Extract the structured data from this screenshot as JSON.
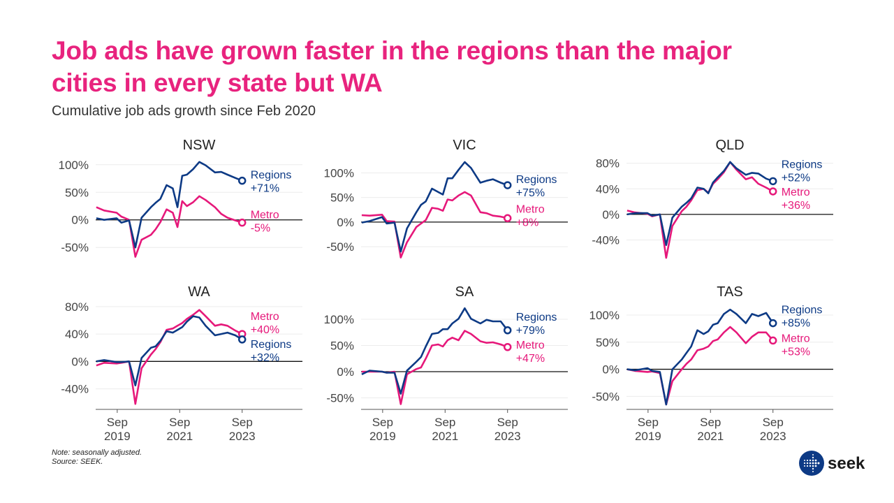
{
  "title_lines": [
    "Job ads have grown faster in the regions than the major",
    "cities in every state but WA"
  ],
  "subtitle": "Cumulative job ads growth since Feb 2020",
  "note": "Note: seasonally adjusted.",
  "source": "Source: SEEK.",
  "logo_text": "seek",
  "colors": {
    "regions": "#0d3a85",
    "metro": "#e6187a",
    "title": "#e8237e"
  },
  "chart_data": {
    "type": "line",
    "xlabel": "",
    "ylabel": "",
    "xlim": [
      2018.98,
      2025.6
    ],
    "x_ticks": [
      {
        "value": 2019.67,
        "month": "Sep",
        "year": "2019"
      },
      {
        "value": 2021.67,
        "month": "Sep",
        "year": "2021"
      },
      {
        "value": 2023.67,
        "month": "Sep",
        "year": "2023"
      }
    ],
    "x": [
      2019.0,
      2019.25,
      2019.65,
      2019.8,
      2020.05,
      2020.25,
      2020.45,
      2020.75,
      2020.9,
      2021.05,
      2021.25,
      2021.45,
      2021.6,
      2021.75,
      2021.9,
      2022.1,
      2022.3,
      2022.5,
      2022.8,
      2023.0,
      2023.2,
      2023.45,
      2023.67
    ],
    "panels": [
      {
        "title": "NSW",
        "ylim": [
          -70,
          120
        ],
        "yticks": [
          -50,
          0,
          50,
          100
        ],
        "ytick_labels": [
          "-50%",
          "0%",
          "50%",
          "100%"
        ],
        "series": [
          {
            "name": "Regions",
            "end_label": "+71%",
            "values": [
              3,
              0,
              3,
              -5,
              -1,
              -50,
              4,
              23,
              31,
              38,
              63,
              57,
              23,
              80,
              82,
              92,
              105,
              99,
              86,
              87,
              82,
              76,
              71
            ]
          },
          {
            "name": "Metro",
            "end_label": "-5%",
            "values": [
              23,
              17,
              13,
              6,
              0,
              -67,
              -36,
              -27,
              -17,
              -4,
              19,
              13,
              -13,
              34,
              25,
              32,
              43,
              36,
              23,
              11,
              4,
              -1,
              -5
            ]
          }
        ]
      },
      {
        "title": "VIC",
        "ylim": [
          -74,
          139
        ],
        "yticks": [
          -50,
          0,
          50,
          100
        ],
        "ytick_labels": [
          "-50%",
          "0%",
          "50%",
          "100%"
        ],
        "series": [
          {
            "name": "Regions",
            "end_label": "+75%",
            "values": [
              -1,
              2,
              10,
              -3,
              -1,
              -60,
              -13,
              20,
              35,
              42,
              68,
              61,
              56,
              89,
              89,
              106,
              122,
              110,
              80,
              84,
              87,
              80,
              75
            ]
          },
          {
            "name": "Metro",
            "end_label": "+8%",
            "values": [
              14,
              13,
              15,
              2,
              1,
              -72,
              -41,
              -10,
              -3,
              4,
              29,
              27,
              23,
              46,
              44,
              54,
              61,
              54,
              20,
              18,
              13,
              11,
              8
            ]
          }
        ]
      },
      {
        "title": "QLD",
        "ylim": [
          -69,
          95
        ],
        "yticks": [
          -40,
          0,
          40,
          80
        ],
        "ytick_labels": [
          "-40%",
          "0%",
          "40%",
          "80%"
        ],
        "series": [
          {
            "name": "Regions",
            "end_label": "+52%",
            "values": [
              0,
              2,
              2,
              -2,
              0,
              -48,
              -5,
              12,
              18,
              25,
              42,
              40,
              33,
              50,
              58,
              68,
              82,
              72,
              62,
              65,
              64,
              56,
              52
            ]
          },
          {
            "name": "Metro",
            "end_label": "+36%",
            "values": [
              6,
              3,
              1,
              -3,
              0,
              -68,
              -18,
              5,
              12,
              22,
              38,
              40,
              34,
              48,
              55,
              66,
              82,
              70,
              55,
              58,
              48,
              42,
              36
            ]
          }
        ]
      },
      {
        "title": "WA",
        "ylim": [
          -70,
          89
        ],
        "yticks": [
          -40,
          0,
          40,
          80
        ],
        "ytick_labels": [
          "-40%",
          "0%",
          "40%",
          "80%"
        ],
        "series": [
          {
            "name": "Regions",
            "end_label": "+32%",
            "values": [
              0,
              2,
              -1,
              -1,
              0,
              -35,
              5,
              20,
              22,
              30,
              44,
              42,
              46,
              50,
              58,
              66,
              64,
              52,
              38,
              40,
              42,
              38,
              32
            ]
          },
          {
            "name": "Metro",
            "end_label": "+40%",
            "values": [
              -6,
              -2,
              -3,
              -2,
              0,
              -62,
              -10,
              10,
              18,
              28,
              46,
              48,
              52,
              56,
              62,
              68,
              75,
              66,
              52,
              54,
              52,
              45,
              40
            ]
          }
        ]
      },
      {
        "title": "SA",
        "ylim": [
          -72,
          136
        ],
        "yticks": [
          -50,
          0,
          50,
          100
        ],
        "ytick_labels": [
          "-50%",
          "0%",
          "50%",
          "100%"
        ],
        "series": [
          {
            "name": "Regions",
            "end_label": "+79%",
            "values": [
              -5,
              2,
              0,
              -2,
              -2,
              -42,
              2,
              19,
              28,
              48,
              72,
              74,
              81,
              81,
              92,
              101,
              121,
              101,
              92,
              99,
              96,
              96,
              79
            ]
          },
          {
            "name": "Metro",
            "end_label": "+47%",
            "values": [
              0,
              0,
              0,
              -2,
              0,
              -62,
              -5,
              5,
              8,
              25,
              50,
              52,
              48,
              60,
              65,
              60,
              78,
              72,
              58,
              55,
              56,
              52,
              47
            ]
          }
        ]
      },
      {
        "title": "TAS",
        "ylim": [
          -74,
          127
        ],
        "yticks": [
          -50,
          0,
          50,
          100
        ],
        "ytick_labels": [
          "-50%",
          "0%",
          "50%",
          "100%"
        ],
        "series": [
          {
            "name": "Regions",
            "end_label": "+85%",
            "values": [
              0,
              -2,
              2,
              -3,
              -5,
              -65,
              0,
              18,
              30,
              42,
              72,
              65,
              70,
              82,
              85,
              102,
              110,
              102,
              85,
              102,
              98,
              104,
              85
            ]
          },
          {
            "name": "Metro",
            "end_label": "+53%",
            "values": [
              0,
              -3,
              -5,
              -4,
              -7,
              -65,
              -22,
              0,
              10,
              18,
              35,
              38,
              42,
              52,
              55,
              68,
              78,
              68,
              48,
              60,
              68,
              68,
              53
            ]
          }
        ]
      }
    ]
  }
}
